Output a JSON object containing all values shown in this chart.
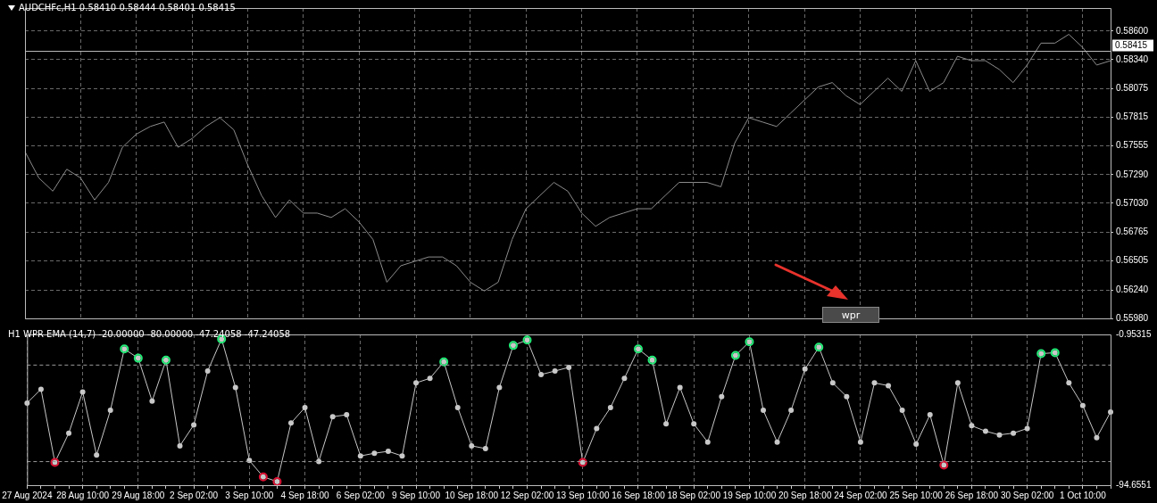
{
  "chart_data": [
    {
      "type": "line",
      "title": "AUDCHFc,H1  0.58410 0.58444 0.58401 0.58415",
      "categories": [
        null,
        null,
        null,
        null,
        null,
        null,
        null,
        null,
        null,
        null,
        null,
        null,
        null,
        null,
        null,
        null,
        null,
        null,
        null,
        null,
        null,
        null,
        null,
        null,
        null,
        null,
        null,
        null,
        null,
        null,
        null,
        null,
        null,
        null,
        null,
        null,
        null,
        null,
        null,
        null,
        null,
        null,
        null,
        null,
        null,
        null,
        null,
        null,
        null,
        null,
        null,
        null,
        null,
        null,
        null,
        null,
        null,
        null,
        null,
        null,
        null,
        null,
        null,
        null,
        null,
        null,
        null,
        null,
        null,
        null,
        null,
        null,
        null,
        null,
        null,
        null,
        null,
        null,
        null
      ],
      "series": [
        {
          "color": "#8c8c8c",
          "values": [
            0.575,
            0.5726,
            0.5714,
            0.5734,
            0.5726,
            0.5706,
            0.5722,
            0.5754,
            0.5766,
            0.5773,
            0.5777,
            0.5754,
            0.5762,
            0.5773,
            0.5781,
            0.577,
            0.5738,
            0.571,
            0.569,
            0.5706,
            0.5694,
            0.5694,
            0.569,
            0.5698,
            0.5686,
            0.567,
            0.5631,
            0.5646,
            0.565,
            0.5654,
            0.5654,
            0.5646,
            0.5631,
            0.5623,
            0.5631,
            0.567,
            0.5698,
            0.571,
            0.5722,
            0.5714,
            0.5694,
            0.5682,
            0.569,
            0.5694,
            0.5698,
            0.5698,
            0.571,
            0.5722,
            0.5722,
            0.5722,
            0.5718,
            0.5758,
            0.5781,
            0.5777,
            0.5773,
            0.5785,
            0.5797,
            0.5809,
            0.5813,
            0.5801,
            0.5793,
            0.5805,
            0.5817,
            0.5805,
            0.5833,
            0.5805,
            0.5813,
            0.5837,
            0.5833,
            0.5833,
            0.5825,
            0.5813,
            0.5829,
            0.5849,
            0.5849,
            0.5857,
            0.5845,
            0.5829,
            0.5833
          ]
        }
      ],
      "ylim": [
        0.5598,
        0.5881
      ],
      "yticks": [
        {
          "value": 0.5598,
          "label": "0.55980"
        },
        {
          "value": 0.5624,
          "label": "0.56240"
        },
        {
          "value": 0.56505,
          "label": "0.56505"
        },
        {
          "value": 0.56765,
          "label": "0.56765"
        },
        {
          "value": 0.5703,
          "label": "0.57030"
        },
        {
          "value": 0.5729,
          "label": "0.57290"
        },
        {
          "value": 0.57555,
          "label": "0.57555"
        },
        {
          "value": 0.57815,
          "label": "0.57815"
        },
        {
          "value": 0.58075,
          "label": "0.58075"
        },
        {
          "value": 0.5834,
          "label": "0.58340"
        },
        {
          "value": 0.586,
          "label": "0.58600"
        }
      ],
      "ref_lines": [
        {
          "axis": "y",
          "value": 0.58415,
          "label": "0.58415",
          "color": "#c0c0c0",
          "line_style": "solid"
        }
      ],
      "annotations": [
        "wpr"
      ],
      "grid": true,
      "legend": false,
      "tick_labels": "y",
      "marker": "none",
      "line_style": "solid"
    },
    {
      "type": "line",
      "title": "H1 WPR  EMA (14,7) -20.00000 -80.00000 -47.24058 -47.24058",
      "categories": [
        "27 Aug 2024",
        null,
        null,
        null,
        "28 Aug 10:00",
        null,
        null,
        null,
        "29 Aug 18:00",
        null,
        null,
        null,
        "2 Sep 02:00",
        null,
        null,
        null,
        "3 Sep 10:00",
        null,
        null,
        null,
        "4 Sep 18:00",
        null,
        null,
        null,
        "6 Sep 02:00",
        null,
        null,
        null,
        "9 Sep 10:00",
        null,
        null,
        null,
        "10 Sep 18:00",
        null,
        null,
        null,
        "12 Sep 02:00",
        null,
        null,
        null,
        "13 Sep 10:00",
        null,
        null,
        null,
        "16 Sep 18:00",
        null,
        null,
        null,
        "18 Sep 02:00",
        null,
        null,
        null,
        "19 Sep 10:00",
        null,
        null,
        null,
        "20 Sep 18:00",
        null,
        null,
        null,
        "24 Sep 02:00",
        null,
        null,
        null,
        "25 Sep 10:00",
        null,
        null,
        null,
        "26 Sep 18:00",
        null,
        null,
        null,
        "30 Sep 02:00",
        null,
        null,
        null,
        "1 Oct 10:00",
        null,
        null
      ],
      "series": [
        {
          "color": "#c8c8c8",
          "values": [
            -43.6,
            -35.0,
            -80.5,
            -62.3,
            -36.7,
            -75.9,
            -48.1,
            -10.0,
            -15.7,
            -42.4,
            -16.9,
            -70.2,
            -57.2,
            -23.7,
            -3.8,
            -33.9,
            -79.3,
            -89.5,
            -92.4,
            -56.0,
            -46.4,
            -79.9,
            -52.1,
            -50.9,
            -76.5,
            -74.8,
            -73.6,
            -76.5,
            -31.1,
            -28.2,
            -18.0,
            -46.4,
            -70.2,
            -71.9,
            -33.9,
            -7.8,
            -4.4,
            -25.9,
            -23.7,
            -21.4,
            -80.5,
            -59.4,
            -46.4,
            -28.2,
            -10.0,
            -16.9,
            -56.6,
            -33.9,
            -56.6,
            -67.9,
            -39.6,
            -14.0,
            -5.5,
            -48.1,
            -67.9,
            -48.1,
            -22.5,
            -8.9,
            -31.1,
            -39.6,
            -67.9,
            -31.1,
            -32.8,
            -48.1,
            -69.1,
            -50.9,
            -82.2,
            -31.1,
            -57.7,
            -61.1,
            -63.4,
            -62.3,
            -59.4,
            -12.9,
            -12.3,
            -31.1,
            -45.2,
            -65.1,
            -49.2
          ]
        },
        {
          "type": "scatter",
          "color": "#22ee77",
          "values": [
            null,
            null,
            null,
            null,
            null,
            null,
            null,
            -10.0,
            -15.7,
            null,
            -16.9,
            null,
            null,
            null,
            -3.8,
            null,
            null,
            null,
            null,
            null,
            null,
            null,
            null,
            null,
            null,
            null,
            null,
            null,
            null,
            null,
            -18.0,
            null,
            null,
            null,
            null,
            -7.8,
            -4.4,
            null,
            null,
            null,
            null,
            null,
            null,
            null,
            -10.0,
            -16.9,
            null,
            null,
            null,
            null,
            null,
            -14.0,
            -5.5,
            null,
            null,
            null,
            null,
            -8.9,
            null,
            null,
            null,
            null,
            null,
            null,
            null,
            null,
            null,
            null,
            null,
            null,
            null,
            null,
            null,
            -12.9,
            -12.3,
            null,
            null,
            null,
            null
          ]
        },
        {
          "type": "scatter",
          "color": "#dd1133",
          "values": [
            null,
            null,
            -80.5,
            null,
            null,
            null,
            null,
            null,
            null,
            null,
            null,
            null,
            null,
            null,
            null,
            null,
            null,
            -89.5,
            -92.4,
            null,
            null,
            null,
            null,
            null,
            null,
            null,
            null,
            null,
            null,
            null,
            null,
            null,
            null,
            null,
            null,
            null,
            null,
            null,
            null,
            null,
            -80.5,
            null,
            null,
            null,
            null,
            null,
            null,
            null,
            null,
            null,
            null,
            null,
            null,
            null,
            null,
            null,
            null,
            null,
            null,
            null,
            null,
            null,
            null,
            null,
            null,
            null,
            -82.2,
            null,
            null,
            null,
            null,
            null,
            null,
            null,
            null,
            null,
            null,
            null,
            null
          ]
        }
      ],
      "ylim": [
        -94.6551,
        -0.95315
      ],
      "yticks": [
        -94.6551,
        -0.95315
      ],
      "ref_lines": [
        {
          "axis": "y",
          "value": -20,
          "color": "#9a9a9a",
          "line_style": "dashed"
        },
        {
          "axis": "y",
          "value": -80,
          "color": "#9a9a9a",
          "line_style": "dashed"
        }
      ],
      "grid": "x",
      "legend": false,
      "marker": "circle",
      "line_style": "solid"
    }
  ]
}
